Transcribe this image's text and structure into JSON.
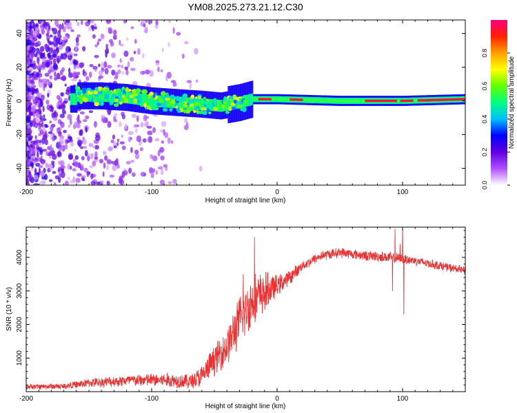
{
  "title": "YM08.2025.273.21.12.C30",
  "chart_data": [
    {
      "type": "heatmap",
      "title": "YM08.2025.273.21.12.C30",
      "xlabel": "Height of straight line (km)",
      "ylabel": "Frequency (Hz)",
      "xlim": [
        -200,
        150
      ],
      "ylim": [
        -50,
        48
      ],
      "xticks": [
        -200,
        -100,
        0,
        100
      ],
      "xtick_labels": [
        "-200",
        "-100",
        "0",
        "100"
      ],
      "yticks": [
        -40,
        -20,
        0,
        20,
        40
      ],
      "ytick_labels": [
        "-40",
        "-20",
        "0",
        "20",
        "40"
      ],
      "colorbar": {
        "label": "Normalized spectral amplitude",
        "range": [
          0,
          1
        ],
        "ticks": [
          0,
          0.2,
          0.4,
          0.6,
          0.8
        ],
        "tick_labels": [
          "0.0",
          "0.2",
          "0.4",
          "0.6",
          "0.8"
        ],
        "colors": [
          "#ffffff",
          "#b050ff",
          "#6000e0",
          "#0000ff",
          "#00c0ff",
          "#00ff80",
          "#60ff00",
          "#ffff00",
          "#ffa000",
          "#ff2000",
          "#ff0080"
        ]
      },
      "band": {
        "center_hz": [
          {
            "x": -160,
            "f": 3
          },
          {
            "x": -140,
            "f": 3
          },
          {
            "x": -120,
            "f": 2
          },
          {
            "x": -100,
            "f": 0
          },
          {
            "x": -80,
            "f": -1
          },
          {
            "x": -60,
            "f": -2
          },
          {
            "x": -45,
            "f": -3
          },
          {
            "x": -30,
            "f": -1
          },
          {
            "x": -20,
            "f": 1
          },
          {
            "x": 0,
            "f": 1
          },
          {
            "x": 50,
            "f": 0
          },
          {
            "x": 100,
            "f": 0
          },
          {
            "x": 150,
            "f": 1
          }
        ],
        "peak_segments_x": [
          [
            -15,
            -5
          ],
          [
            10,
            20
          ],
          [
            70,
            95
          ],
          [
            98,
            108
          ],
          [
            112,
            150
          ]
        ]
      }
    },
    {
      "type": "line",
      "xlabel": "Height of straight line (km)",
      "ylabel": "SNR (10 * v/v)",
      "xlim": [
        -200,
        150
      ],
      "ylim": [
        0,
        4900
      ],
      "xticks": [
        -200,
        -100,
        0,
        100
      ],
      "xtick_labels": [
        "-200",
        "-100",
        "0",
        "100"
      ],
      "yticks": [
        1000,
        2000,
        3000,
        4000
      ],
      "ytick_labels": [
        "1000",
        "2000",
        "3000",
        "4000"
      ],
      "line_color": "#f03030",
      "envelope": [
        {
          "x": -200,
          "mean": 150,
          "amp": 90
        },
        {
          "x": -170,
          "mean": 160,
          "amp": 100
        },
        {
          "x": -150,
          "mean": 260,
          "amp": 150
        },
        {
          "x": -120,
          "mean": 330,
          "amp": 200
        },
        {
          "x": -100,
          "mean": 350,
          "amp": 230
        },
        {
          "x": -80,
          "mean": 330,
          "amp": 250
        },
        {
          "x": -70,
          "mean": 300,
          "amp": 250
        },
        {
          "x": -60,
          "mean": 450,
          "amp": 380
        },
        {
          "x": -50,
          "mean": 950,
          "amp": 500
        },
        {
          "x": -40,
          "mean": 1350,
          "amp": 650
        },
        {
          "x": -30,
          "mean": 2100,
          "amp": 850
        },
        {
          "x": -20,
          "mean": 2700,
          "amp": 900
        },
        {
          "x": -10,
          "mean": 2950,
          "amp": 700
        },
        {
          "x": 0,
          "mean": 3150,
          "amp": 350
        },
        {
          "x": 10,
          "mean": 3400,
          "amp": 250
        },
        {
          "x": 20,
          "mean": 3750,
          "amp": 170
        },
        {
          "x": 35,
          "mean": 4050,
          "amp": 170
        },
        {
          "x": 50,
          "mean": 4150,
          "amp": 170
        },
        {
          "x": 70,
          "mean": 4050,
          "amp": 170
        },
        {
          "x": 90,
          "mean": 4000,
          "amp": 190
        },
        {
          "x": 110,
          "mean": 3900,
          "amp": 160
        },
        {
          "x": 130,
          "mean": 3750,
          "amp": 150
        },
        {
          "x": 150,
          "mean": 3600,
          "amp": 140
        }
      ],
      "spikes": [
        {
          "x": -18,
          "y": 4600
        },
        {
          "x": -27,
          "y": 3500
        },
        {
          "x": 92,
          "y": 3000
        },
        {
          "x": 94,
          "y": 4850
        },
        {
          "x": 100,
          "y": 4900
        },
        {
          "x": 101,
          "y": 2300
        },
        {
          "x": 98,
          "y": 4400
        }
      ]
    }
  ]
}
